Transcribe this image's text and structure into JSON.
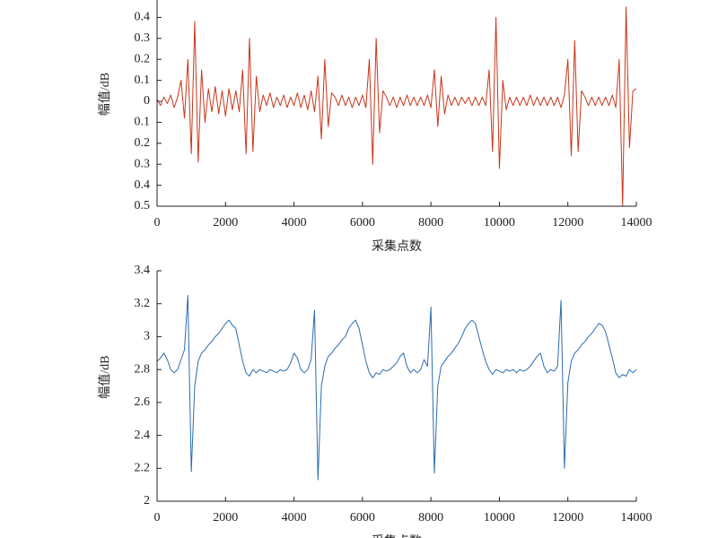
{
  "chart_data": [
    {
      "type": "line",
      "xlabel": "采集点数",
      "ylabel": "幅值/dB",
      "color": "#c8361a",
      "xlim": [
        0,
        14000
      ],
      "xticks": [
        0,
        2000,
        4000,
        6000,
        8000,
        10000,
        12000,
        14000
      ],
      "ylim": [
        -0.5,
        0.5
      ],
      "yticks": [
        0.4,
        0.3,
        0.2,
        0.1,
        0,
        {
          "value": -0.1,
          "label": "0.1"
        },
        {
          "value": -0.2,
          "label": "0.2"
        },
        {
          "value": -0.3,
          "label": "0.3"
        },
        {
          "value": -0.4,
          "label": "0.4"
        },
        {
          "value": -0.5,
          "label": "0.5"
        }
      ],
      "x": [
        0,
        100,
        200,
        300,
        400,
        500,
        600,
        700,
        800,
        900,
        1000,
        1100,
        1200,
        1300,
        1400,
        1500,
        1600,
        1700,
        1800,
        1900,
        2000,
        2100,
        2200,
        2300,
        2400,
        2500,
        2600,
        2700,
        2800,
        2900,
        3000,
        3100,
        3200,
        3300,
        3400,
        3500,
        3600,
        3700,
        3800,
        3900,
        4000,
        4100,
        4200,
        4300,
        4400,
        4500,
        4600,
        4700,
        4800,
        4900,
        5000,
        5100,
        5200,
        5300,
        5400,
        5500,
        5600,
        5700,
        5800,
        5900,
        6000,
        6100,
        6200,
        6300,
        6400,
        6500,
        6600,
        6700,
        6800,
        6900,
        7000,
        7100,
        7200,
        7300,
        7400,
        7500,
        7600,
        7700,
        7800,
        7900,
        8000,
        8100,
        8200,
        8300,
        8400,
        8500,
        8600,
        8700,
        8800,
        8900,
        9000,
        9100,
        9200,
        9300,
        9400,
        9500,
        9600,
        9700,
        9800,
        9900,
        10000,
        10100,
        10200,
        10300,
        10400,
        10500,
        10600,
        10700,
        10800,
        10900,
        11000,
        11100,
        11200,
        11300,
        11400,
        11500,
        11600,
        11700,
        11800,
        11900,
        12000,
        12100,
        12200,
        12300,
        12400,
        12500,
        12600,
        12700,
        12800,
        12900,
        13000,
        13100,
        13200,
        13300,
        13400,
        13500,
        13600,
        13700,
        13800,
        13900,
        14000
      ],
      "values": [
        0.01,
        -0.02,
        0.02,
        -0.01,
        0.03,
        -0.03,
        0.02,
        0.1,
        -0.08,
        0.2,
        -0.25,
        0.38,
        -0.29,
        0.15,
        -0.1,
        0.06,
        -0.05,
        0.07,
        -0.06,
        0.05,
        -0.07,
        0.06,
        -0.04,
        0.05,
        -0.05,
        0.15,
        -0.25,
        0.3,
        -0.24,
        0.12,
        -0.05,
        0.03,
        -0.02,
        0.04,
        -0.03,
        0.02,
        -0.02,
        0.03,
        -0.03,
        0.02,
        -0.02,
        0.04,
        -0.03,
        0.03,
        -0.04,
        0.05,
        -0.05,
        0.12,
        -0.18,
        0.2,
        -0.12,
        0.04,
        0.02,
        -0.02,
        0.03,
        -0.02,
        0.02,
        -0.03,
        0.02,
        -0.02,
        0.03,
        -0.03,
        0.2,
        -0.3,
        0.3,
        -0.15,
        0.05,
        0.02,
        -0.02,
        0.02,
        -0.03,
        0.02,
        -0.02,
        0.03,
        -0.02,
        0.02,
        -0.02,
        0.02,
        -0.02,
        0.03,
        -0.03,
        0.15,
        -0.12,
        0.12,
        -0.06,
        0.03,
        -0.02,
        0.02,
        -0.02,
        0.02,
        -0.01,
        0.02,
        -0.02,
        0.02,
        -0.02,
        0.02,
        -0.02,
        0.15,
        -0.24,
        0.4,
        -0.32,
        0.1,
        -0.04,
        0.02,
        -0.02,
        0.02,
        -0.02,
        0.02,
        -0.02,
        0.03,
        -0.02,
        0.02,
        -0.02,
        0.02,
        -0.02,
        0.02,
        -0.02,
        0.02,
        -0.03,
        0.03,
        0.2,
        -0.26,
        0.29,
        -0.24,
        0.05,
        0.02,
        -0.02,
        0.02,
        -0.02,
        0.02,
        -0.02,
        0.02,
        -0.02,
        0.03,
        -0.03,
        0.2,
        -0.5,
        0.45,
        -0.22,
        0.05,
        0.06
      ]
    },
    {
      "type": "line",
      "xlabel": "采集点数",
      "ylabel": "幅值/dB",
      "color": "#2b6cae",
      "xlim": [
        0,
        14000
      ],
      "xticks": [
        0,
        2000,
        4000,
        6000,
        8000,
        10000,
        12000,
        14000
      ],
      "ylim": [
        2,
        3.4
      ],
      "yticks": [
        2,
        2.2,
        2.4,
        2.6,
        2.8,
        3,
        3.2,
        3.4
      ],
      "x": [
        0,
        100,
        200,
        300,
        400,
        500,
        600,
        700,
        800,
        900,
        1000,
        1100,
        1200,
        1300,
        1400,
        1500,
        1600,
        1700,
        1800,
        1900,
        2000,
        2100,
        2200,
        2300,
        2400,
        2500,
        2600,
        2700,
        2800,
        2900,
        3000,
        3100,
        3200,
        3300,
        3400,
        3500,
        3600,
        3700,
        3800,
        3900,
        4000,
        4100,
        4200,
        4300,
        4400,
        4500,
        4600,
        4700,
        4800,
        4900,
        5000,
        5100,
        5200,
        5300,
        5400,
        5500,
        5600,
        5700,
        5800,
        5900,
        6000,
        6100,
        6200,
        6300,
        6400,
        6500,
        6600,
        6700,
        6800,
        6900,
        7000,
        7100,
        7200,
        7300,
        7400,
        7500,
        7600,
        7700,
        7800,
        7900,
        8000,
        8100,
        8200,
        8300,
        8400,
        8500,
        8600,
        8700,
        8800,
        8900,
        9000,
        9100,
        9200,
        9300,
        9400,
        9500,
        9600,
        9700,
        9800,
        9900,
        10000,
        10100,
        10200,
        10300,
        10400,
        10500,
        10600,
        10700,
        10800,
        10900,
        11000,
        11100,
        11200,
        11300,
        11400,
        11500,
        11600,
        11700,
        11800,
        11900,
        12000,
        12100,
        12200,
        12300,
        12400,
        12500,
        12600,
        12700,
        12800,
        12900,
        13000,
        13100,
        13200,
        13300,
        13400,
        13500,
        13600,
        13700,
        13800,
        13900,
        14000
      ],
      "values": [
        2.85,
        2.87,
        2.9,
        2.86,
        2.8,
        2.78,
        2.8,
        2.86,
        2.92,
        3.25,
        2.18,
        2.7,
        2.85,
        2.9,
        2.92,
        2.95,
        2.97,
        3.0,
        3.02,
        3.05,
        3.08,
        3.1,
        3.07,
        3.05,
        2.95,
        2.85,
        2.78,
        2.76,
        2.8,
        2.78,
        2.8,
        2.79,
        2.78,
        2.8,
        2.79,
        2.78,
        2.8,
        2.79,
        2.8,
        2.84,
        2.9,
        2.87,
        2.8,
        2.78,
        2.8,
        2.86,
        3.16,
        2.13,
        2.7,
        2.82,
        2.88,
        2.9,
        2.93,
        2.95,
        2.98,
        3.0,
        3.05,
        3.08,
        3.1,
        3.05,
        2.95,
        2.85,
        2.78,
        2.75,
        2.78,
        2.77,
        2.8,
        2.79,
        2.8,
        2.82,
        2.84,
        2.88,
        2.9,
        2.82,
        2.78,
        2.8,
        2.78,
        2.8,
        2.86,
        2.82,
        3.18,
        2.17,
        2.7,
        2.82,
        2.85,
        2.88,
        2.9,
        2.93,
        2.96,
        3.0,
        3.05,
        3.08,
        3.1,
        3.08,
        3.0,
        2.92,
        2.85,
        2.8,
        2.77,
        2.8,
        2.79,
        2.78,
        2.8,
        2.79,
        2.8,
        2.78,
        2.8,
        2.79,
        2.8,
        2.82,
        2.85,
        2.88,
        2.9,
        2.82,
        2.78,
        2.8,
        2.79,
        2.82,
        3.22,
        2.2,
        2.72,
        2.85,
        2.9,
        2.92,
        2.95,
        2.97,
        3.0,
        3.02,
        3.05,
        3.08,
        3.07,
        3.03,
        2.95,
        2.87,
        2.78,
        2.75,
        2.77,
        2.76,
        2.8,
        2.78,
        2.8
      ]
    }
  ]
}
